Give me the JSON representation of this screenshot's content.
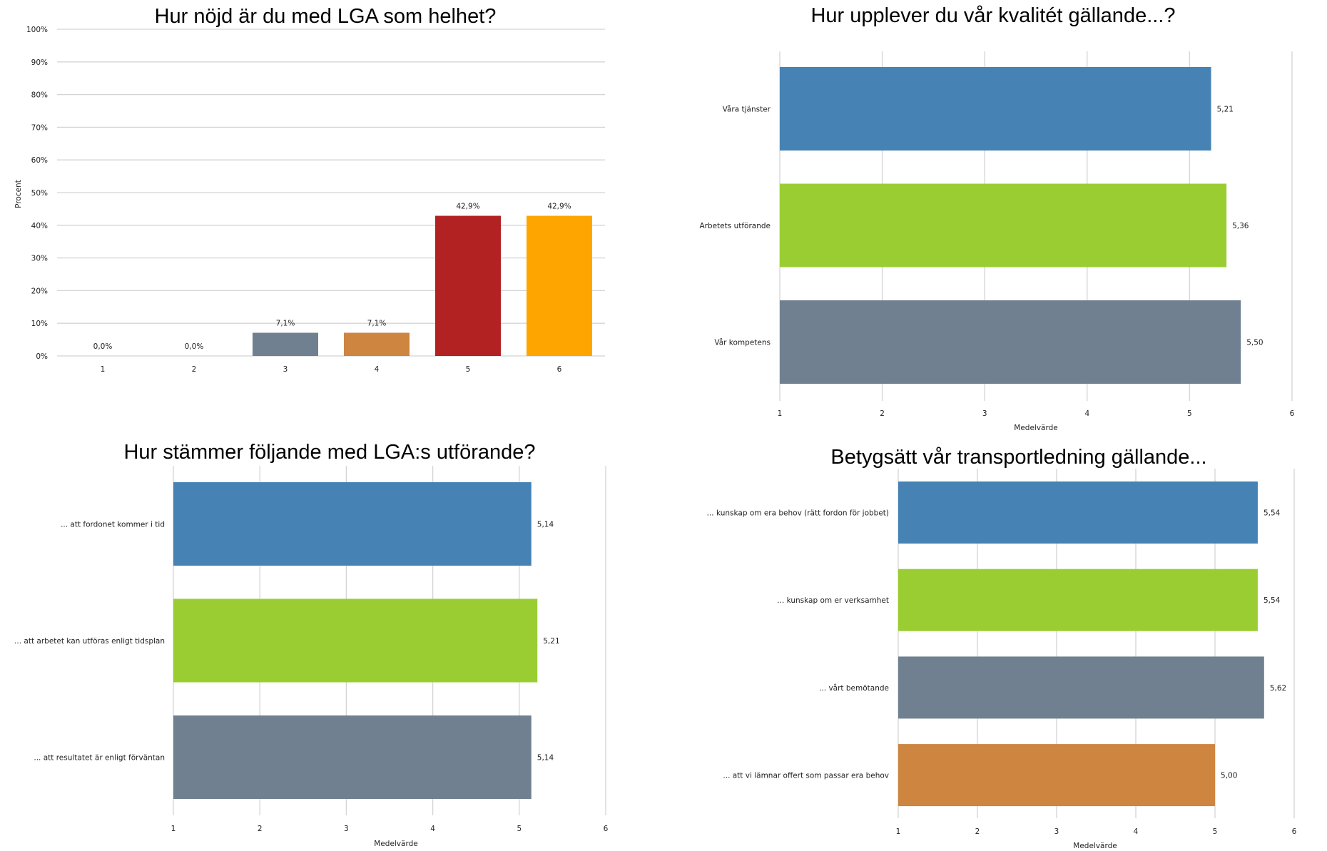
{
  "chart_data": [
    {
      "id": "overall",
      "type": "bar",
      "title": "Hur nöjd är du med LGA som helhet?",
      "xlabel": "",
      "ylabel": "Procent",
      "categories": [
        "1",
        "2",
        "3",
        "4",
        "5",
        "6"
      ],
      "values": [
        0.0,
        0.0,
        7.1,
        7.1,
        42.9,
        42.9
      ],
      "data_labels": [
        "0,0%",
        "0,0%",
        "7,1%",
        "7,1%",
        "42,9%",
        "42,9%"
      ],
      "colors": [
        "#4682B4",
        "#9ACD32",
        "#708090",
        "#CD853F",
        "#B22222",
        "#FFA500"
      ],
      "ylim": [
        0,
        100
      ],
      "yticks": [
        0,
        10,
        20,
        30,
        40,
        50,
        60,
        70,
        80,
        90,
        100
      ],
      "ytick_labels": [
        "0%",
        "10%",
        "20%",
        "30%",
        "40%",
        "50%",
        "60%",
        "70%",
        "80%",
        "90%",
        "100%"
      ],
      "grid": true,
      "legend": "none"
    },
    {
      "id": "quality",
      "type": "bar",
      "orientation": "horizontal",
      "title": "Hur upplever du vår kvalitét gällande...?",
      "xlabel": "Medelvärde",
      "ylabel": "",
      "categories": [
        "Våra tjänster",
        "Arbetets utförande",
        "Vår kompetens"
      ],
      "values": [
        5.21,
        5.36,
        5.5
      ],
      "data_labels": [
        "5,21",
        "5,36",
        "5,50"
      ],
      "colors": [
        "#4682B4",
        "#9ACD32",
        "#708090"
      ],
      "xlim": [
        1,
        6
      ],
      "xticks": [
        "1",
        "2",
        "3",
        "4",
        "5",
        "6"
      ],
      "grid": true,
      "legend": "none"
    },
    {
      "id": "execution",
      "type": "bar",
      "orientation": "horizontal",
      "title": "Hur stämmer följande med LGA:s utförande?",
      "xlabel": "Medelvärde",
      "ylabel": "",
      "categories": [
        "... att fordonet kommer i tid",
        "... att arbetet kan utföras enligt tidsplan",
        "... att resultatet är enligt förväntan"
      ],
      "values": [
        5.14,
        5.21,
        5.14
      ],
      "data_labels": [
        "5,14",
        "5,21",
        "5,14"
      ],
      "colors": [
        "#4682B4",
        "#9ACD32",
        "#708090"
      ],
      "xlim": [
        1,
        6
      ],
      "xticks": [
        "1",
        "2",
        "3",
        "4",
        "5",
        "6"
      ],
      "grid": true,
      "legend": "none"
    },
    {
      "id": "transport",
      "type": "bar",
      "orientation": "horizontal",
      "title": "Betygsätt vår transportledning gällande...",
      "xlabel": "Medelvärde",
      "ylabel": "",
      "categories": [
        "...  kunskap om era behov (rätt fordon för jobbet)",
        "...  kunskap om er verksamhet",
        "... vårt bemötande",
        "... att vi lämnar offert som passar era behov"
      ],
      "values": [
        5.54,
        5.54,
        5.62,
        5.0
      ],
      "data_labels": [
        "5,54",
        "5,54",
        "5,62",
        "5,00"
      ],
      "colors": [
        "#4682B4",
        "#9ACD32",
        "#708090",
        "#CD853F"
      ],
      "xlim": [
        1,
        6
      ],
      "xticks": [
        "1",
        "2",
        "3",
        "4",
        "5",
        "6"
      ],
      "grid": true,
      "legend": "none"
    }
  ]
}
